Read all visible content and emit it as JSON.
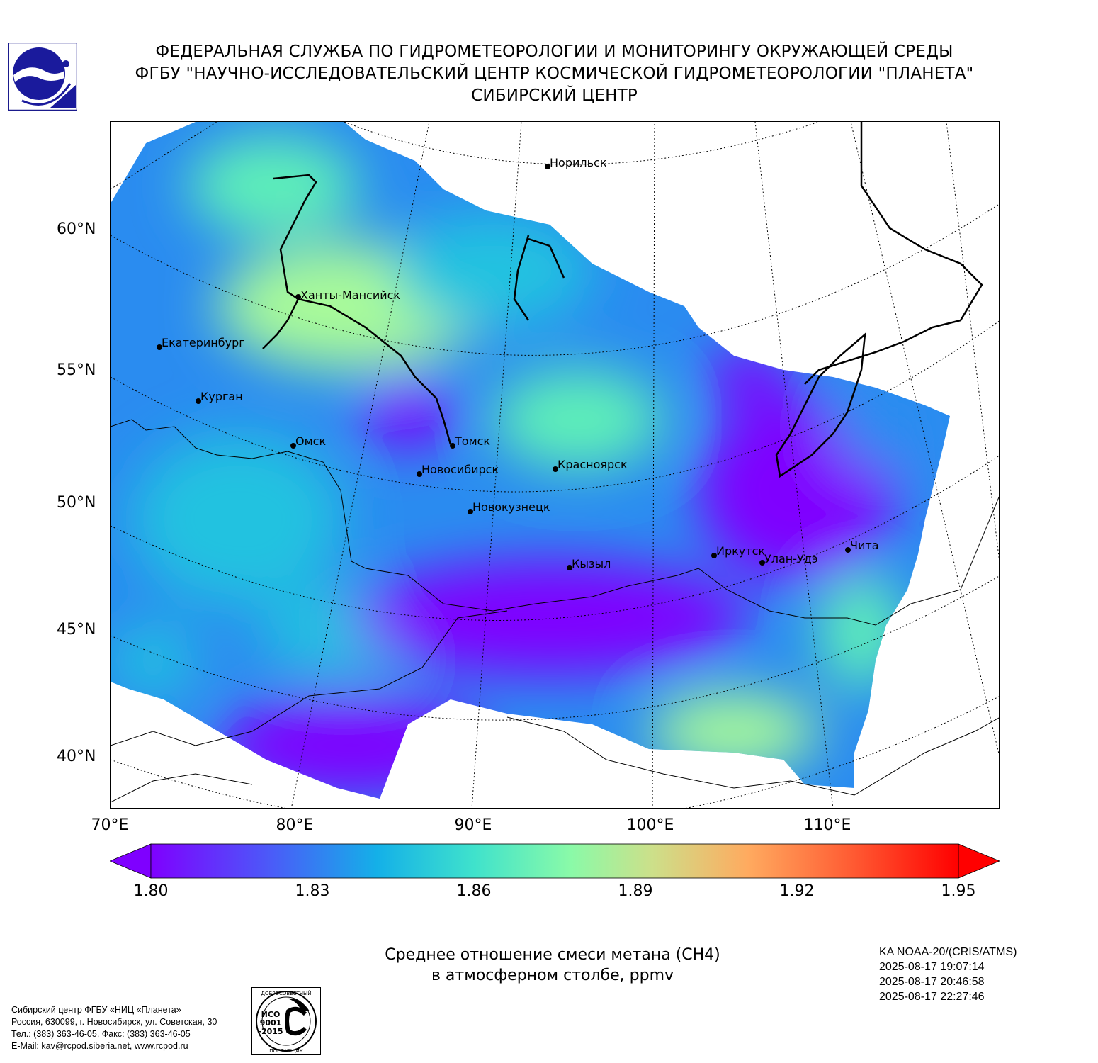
{
  "header": {
    "line1": "ФЕДЕРАЛЬНАЯ СЛУЖБА ПО ГИДРОМЕТЕОРОЛОГИИ И МОНИТОРИНГУ ОКРУЖАЮЩЕЙ СРЕДЫ",
    "line2": "ФГБУ \"НАУЧНО-ИССЛЕДОВАТЕЛЬСКИЙ ЦЕНТР КОСМИЧЕСКОЙ ГИДРОМЕТЕОРОЛОГИИ \"ПЛАНЕТА\"",
    "line3": "СИБИРСКИЙ ЦЕНТР"
  },
  "map": {
    "lat_labels": [
      "60°N",
      "55°N",
      "50°N",
      "45°N",
      "40°N"
    ],
    "lon_labels": [
      "70°E",
      "80°E",
      "90°E",
      "100°E",
      "110°E"
    ],
    "cities": [
      {
        "name": "Норильск"
      },
      {
        "name": "Ханты-Мансийск"
      },
      {
        "name": "Екатеринбург"
      },
      {
        "name": "Курган"
      },
      {
        "name": "Омск"
      },
      {
        "name": "Томск"
      },
      {
        "name": "Новосибирск"
      },
      {
        "name": "Красноярск"
      },
      {
        "name": "Новокузнецк"
      },
      {
        "name": "Иркутск"
      },
      {
        "name": "Улан-Удэ"
      },
      {
        "name": "Чита"
      },
      {
        "name": "Кызыл"
      }
    ],
    "field_colors": {
      "low": "#7f00ff",
      "low_mid": "#2a8cf0",
      "mid": "#22c2e0",
      "high_mid": "#5ff0b8",
      "high": "#a8fa9a"
    }
  },
  "colorbar": {
    "ticks": [
      "1.80",
      "1.83",
      "1.86",
      "1.89",
      "1.92",
      "1.95"
    ],
    "min": 1.8,
    "max": 1.95,
    "colormap": "rainbow",
    "extend": "both"
  },
  "caption": {
    "line1": "Среднее отношение смеси метана (CH4)",
    "line2": "в атмосферном столбе, ppmv"
  },
  "satellite": {
    "instrument": "KA NOAA-20/(CRIS/ATMS)",
    "time1": "2025-08-17 19:07:14",
    "time2": "2025-08-17 20:46:58",
    "time3": "2025-08-17 22:27:46"
  },
  "footer": {
    "line1": "Сибирский центр ФГБУ «НИЦ «Планета»",
    "line2": "Россия, 630099, г. Новосибирск, ул. Советская, 30",
    "line3": "Тел.: (383) 363-46-05, Факс: (383) 363-46-05",
    "line4": "E-Mail: kav@rcpod.siberia.net, www.rcpod.ru"
  },
  "iso_badge": {
    "top_text": "ДОБРОСОВЕСТНЫЙ",
    "mid_text1": "ИСО",
    "mid_text2": "9001",
    "mid_text3": "-2015",
    "bottom_text": "ПОСТАВЩИК"
  }
}
